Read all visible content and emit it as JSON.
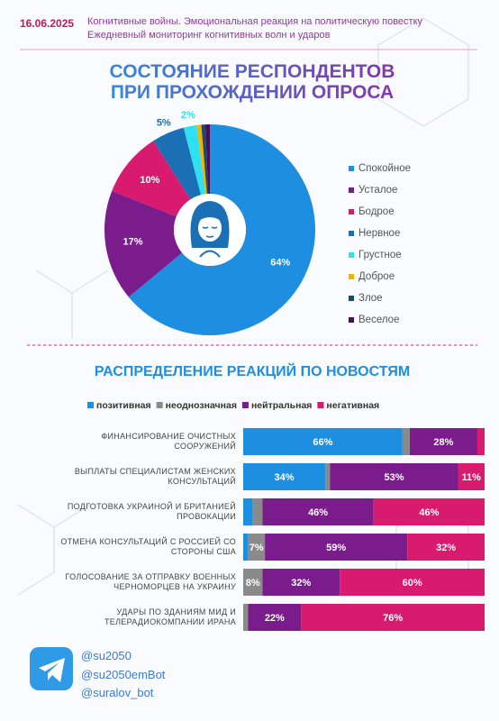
{
  "header": {
    "date": "16.06.2025",
    "lines": [
      "Когнитивные войны. Эмоциональная реакция на политическую повестку",
      "Ежедневный мониторинг когнитивных волн и ударов"
    ]
  },
  "chart_data": [
    {
      "type": "pie",
      "title": "СОСТОЯНИЕ РЕСПОНДЕНТОВ ПРИ ПРОХОЖДЕНИИ ОПРОСА",
      "categories": [
        "Спокойное",
        "Усталое",
        "Бодрое",
        "Нервное",
        "Грустное",
        "Доброе",
        "Злое",
        "Веселое"
      ],
      "values": [
        64,
        17,
        10,
        5,
        2,
        0.7,
        0.6,
        0.7
      ],
      "value_labels": [
        "64%",
        "17%",
        "10%",
        "5%",
        "2%",
        null,
        null,
        null
      ],
      "colors": [
        "#1e8fe0",
        "#7a1c8c",
        "#d81b6e",
        "#1a6fb5",
        "#2fe0f0",
        "#f0b400",
        "#1c4a6a",
        "#4a0d5c"
      ]
    },
    {
      "type": "stacked-bar",
      "title": "РАСПРЕДЕЛЕНИЕ РЕАКЦИЙ ПО НОВОСТЯМ",
      "categories": [
        "Финансирование очистных сооружений",
        "Выплаты специалистам женских консультаций",
        "Подготовка Украиной и Британией провокации",
        "Отмена консультаций с Россией со стороны США",
        "Голосование за отправку военных черноморцев на Украину",
        "Удары по зданиям МИД и телерадиокомпании Ирана"
      ],
      "xlim": [
        0,
        100
      ],
      "series": [
        {
          "name": "позитивная",
          "color": "#1e8fe0",
          "values": [
            66,
            34,
            4,
            2,
            0,
            0
          ],
          "value_labels": [
            "66%",
            "34%",
            null,
            null,
            null,
            null
          ]
        },
        {
          "name": "неоднозначная",
          "color": "#8a8a8a",
          "values": [
            3,
            2,
            4,
            7,
            8,
            2
          ],
          "value_labels": [
            null,
            null,
            null,
            "7%",
            "8%",
            null
          ]
        },
        {
          "name": "нейтральная",
          "color": "#7a1c8c",
          "values": [
            28,
            53,
            46,
            59,
            32,
            22
          ],
          "value_labels": [
            "28%",
            "53%",
            "46%",
            "59%",
            "32%",
            "22%"
          ]
        },
        {
          "name": "негативная",
          "color": "#d81b6e",
          "values": [
            3,
            11,
            46,
            32,
            60,
            76
          ],
          "value_labels": [
            null,
            "11%",
            "46%",
            "32%",
            "60%",
            "76%"
          ]
        }
      ]
    }
  ],
  "footer": {
    "handles": [
      "@su2050",
      "@su2050emBot",
      "@suralov_bot"
    ]
  }
}
